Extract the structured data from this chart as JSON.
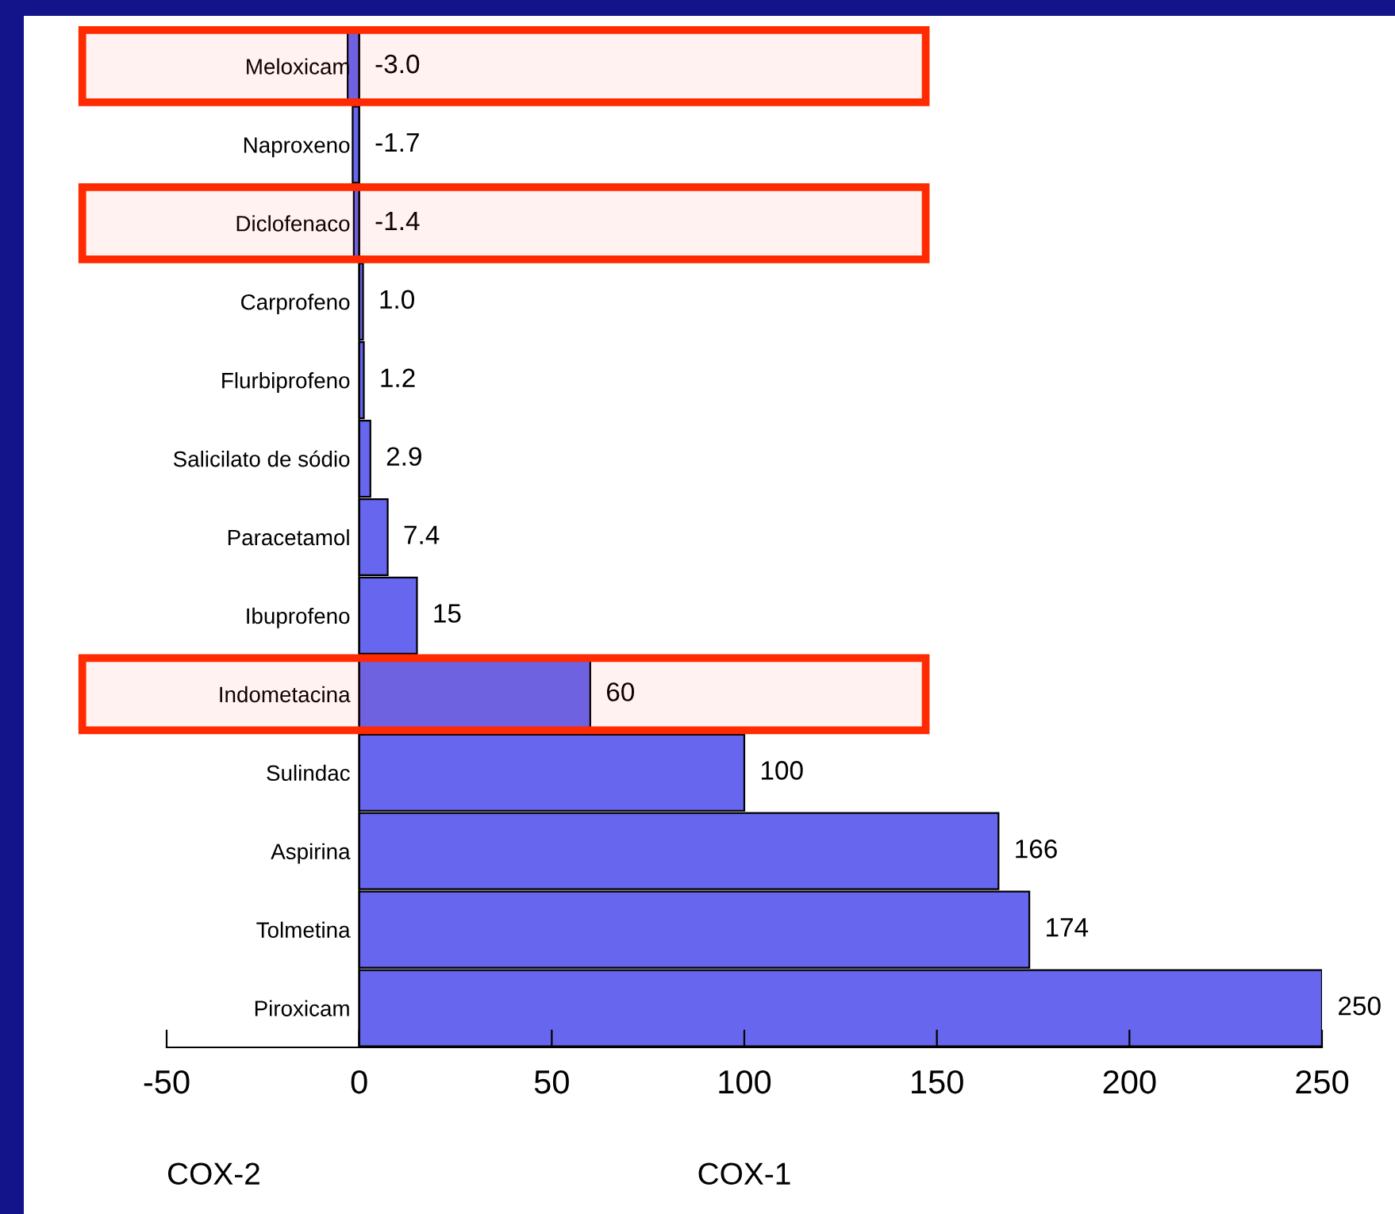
{
  "chart_data": {
    "type": "bar",
    "orientation": "horizontal",
    "categories": [
      "Meloxicam",
      "Naproxeno",
      "Diclofenaco",
      "Carprofeno",
      "Flurbiprofeno",
      "Salicilato de sódio",
      "Paracetamol",
      "Ibuprofeno",
      "Indometacina",
      "Sulindac",
      "Aspirina",
      "Tolmetina",
      "Piroxicam"
    ],
    "values": [
      -3.0,
      -1.7,
      -1.4,
      1.0,
      1.2,
      2.9,
      7.4,
      15,
      60,
      100,
      166,
      174,
      250
    ],
    "value_labels": [
      "-3.0",
      "-1.7",
      "-1.4",
      "1.0",
      "1.2",
      "2.9",
      "7.4",
      "15",
      "60",
      "100",
      "166",
      "174",
      "250"
    ],
    "color": "#6666ee",
    "xlim": [
      -50,
      250
    ],
    "xticks": [
      -50,
      0,
      50,
      100,
      150,
      200,
      250
    ],
    "grid": false,
    "annotations": [
      "COX-2",
      "COX-1"
    ],
    "bands": [
      {
        "axis": "y",
        "from": "Meloxicam",
        "to": "Meloxicam",
        "color": "#ff2a00"
      },
      {
        "axis": "y",
        "from": "Diclofenaco",
        "to": "Diclofenaco",
        "color": "#ff2a00"
      },
      {
        "axis": "y",
        "from": "Indometacina",
        "to": "Indometacina",
        "color": "#ff2a00"
      }
    ]
  }
}
